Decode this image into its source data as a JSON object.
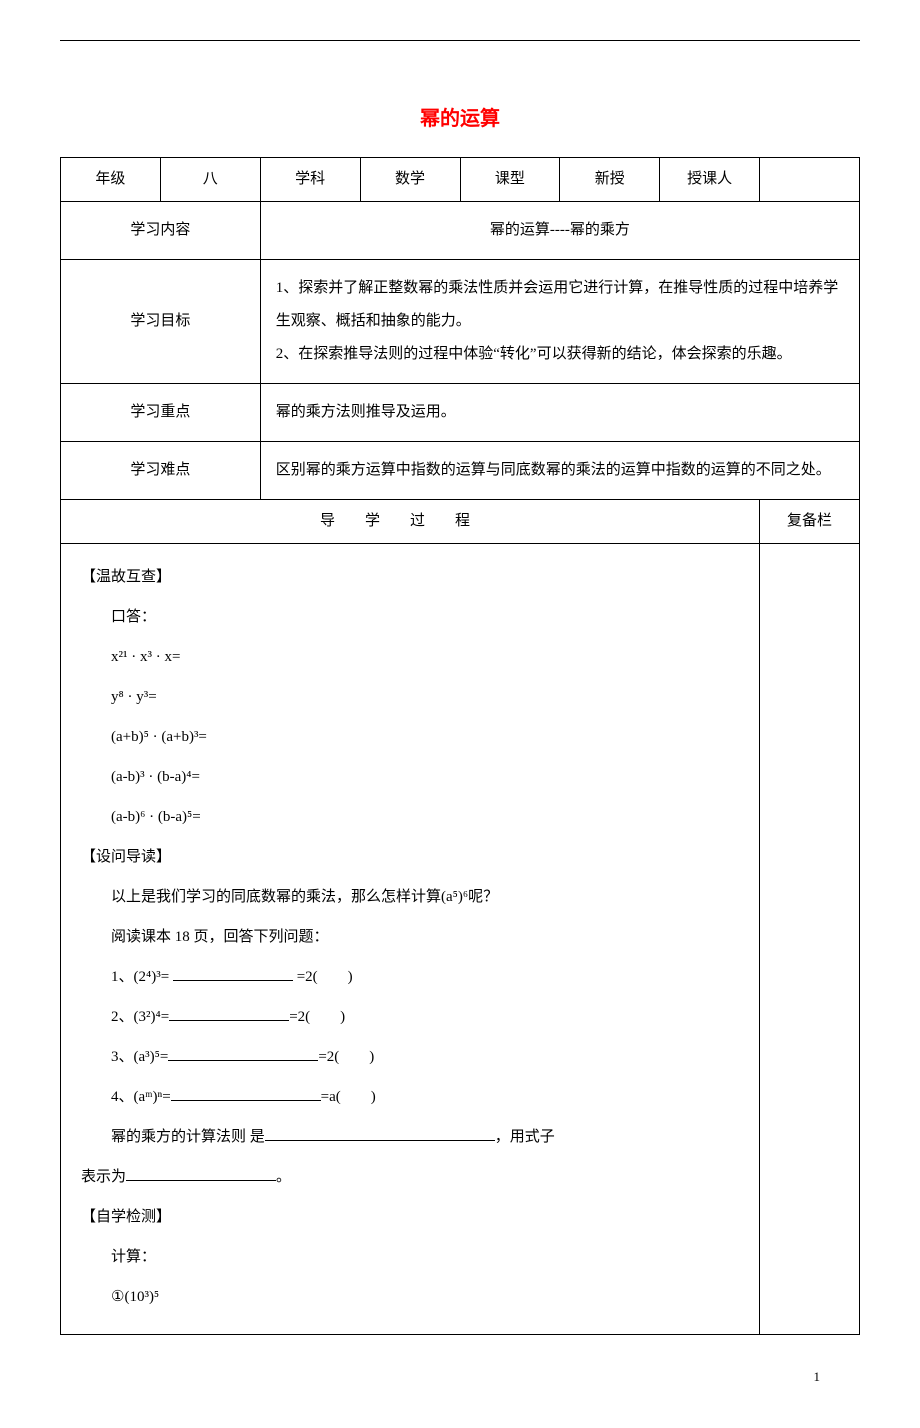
{
  "title": {
    "text": "幂的运算",
    "color": "#ff0000"
  },
  "header_row": {
    "grade_label": "年级",
    "grade_value": "八",
    "subject_label": "学科",
    "subject_value": "数学",
    "type_label": "课型",
    "type_value": "新授",
    "teacher_label": "授课人",
    "teacher_value": ""
  },
  "rows": {
    "content": {
      "label": "学习内容",
      "value": "幂的运算----幂的乘方"
    },
    "goals": {
      "label": "学习目标",
      "value": "1、探索并了解正整数幂的乘法性质并会运用它进行计算，在推导性质的过程中培养学生观察、概括和抽象的能力。\n2、在探索推导法则的过程中体验“转化”可以获得新的结论，体会探索的乐趣。"
    },
    "focus": {
      "label": "学习重点",
      "value": "幂的乘方法则推导及运用。"
    },
    "difficulty": {
      "label": "学习难点",
      "value": "区别幂的乘方运算中指数的运算与同底数幂的乘法的运算中指数的运算的不同之处。"
    }
  },
  "process_header": {
    "main": "导学过程",
    "notes": "复备栏"
  },
  "body": {
    "section1": {
      "header": "【温故互查】",
      "intro": "口答：",
      "items": [
        "x²¹ · x³ · x=",
        "y⁸ · y³=",
        "(a+b)⁵ · (a+b)³=",
        "(a-b)³ · (b-a)⁴=",
        "(a-b)⁶ · (b-a)⁵="
      ]
    },
    "section2": {
      "header": "【设问导读】",
      "line1": "以上是我们学习的同底数幂的乘法，那么怎样计算(a⁵)⁶呢？",
      "line2": "阅读课本 18 页，回答下列问题：",
      "q1_prefix": "1、(2⁴)³= ",
      "q1_suffix": " =2(　　)",
      "q2_prefix": "2、(3²)⁴=",
      "q2_suffix": "=2(　　)",
      "q3_prefix": "3、(a³)⁵=",
      "q3_suffix": "=2(　　)",
      "q4_prefix": "4、(aᵐ)ⁿ=",
      "q4_suffix": "=a(　　)",
      "rule_prefix": "幂的乘方的计算法则 是",
      "rule_suffix": "，用式子",
      "express_prefix": "表示为",
      "express_suffix": "。"
    },
    "section3": {
      "header": "【自学检测】",
      "intro": "计算：",
      "item1": "①(10³)⁵"
    }
  },
  "page_number": "1"
}
